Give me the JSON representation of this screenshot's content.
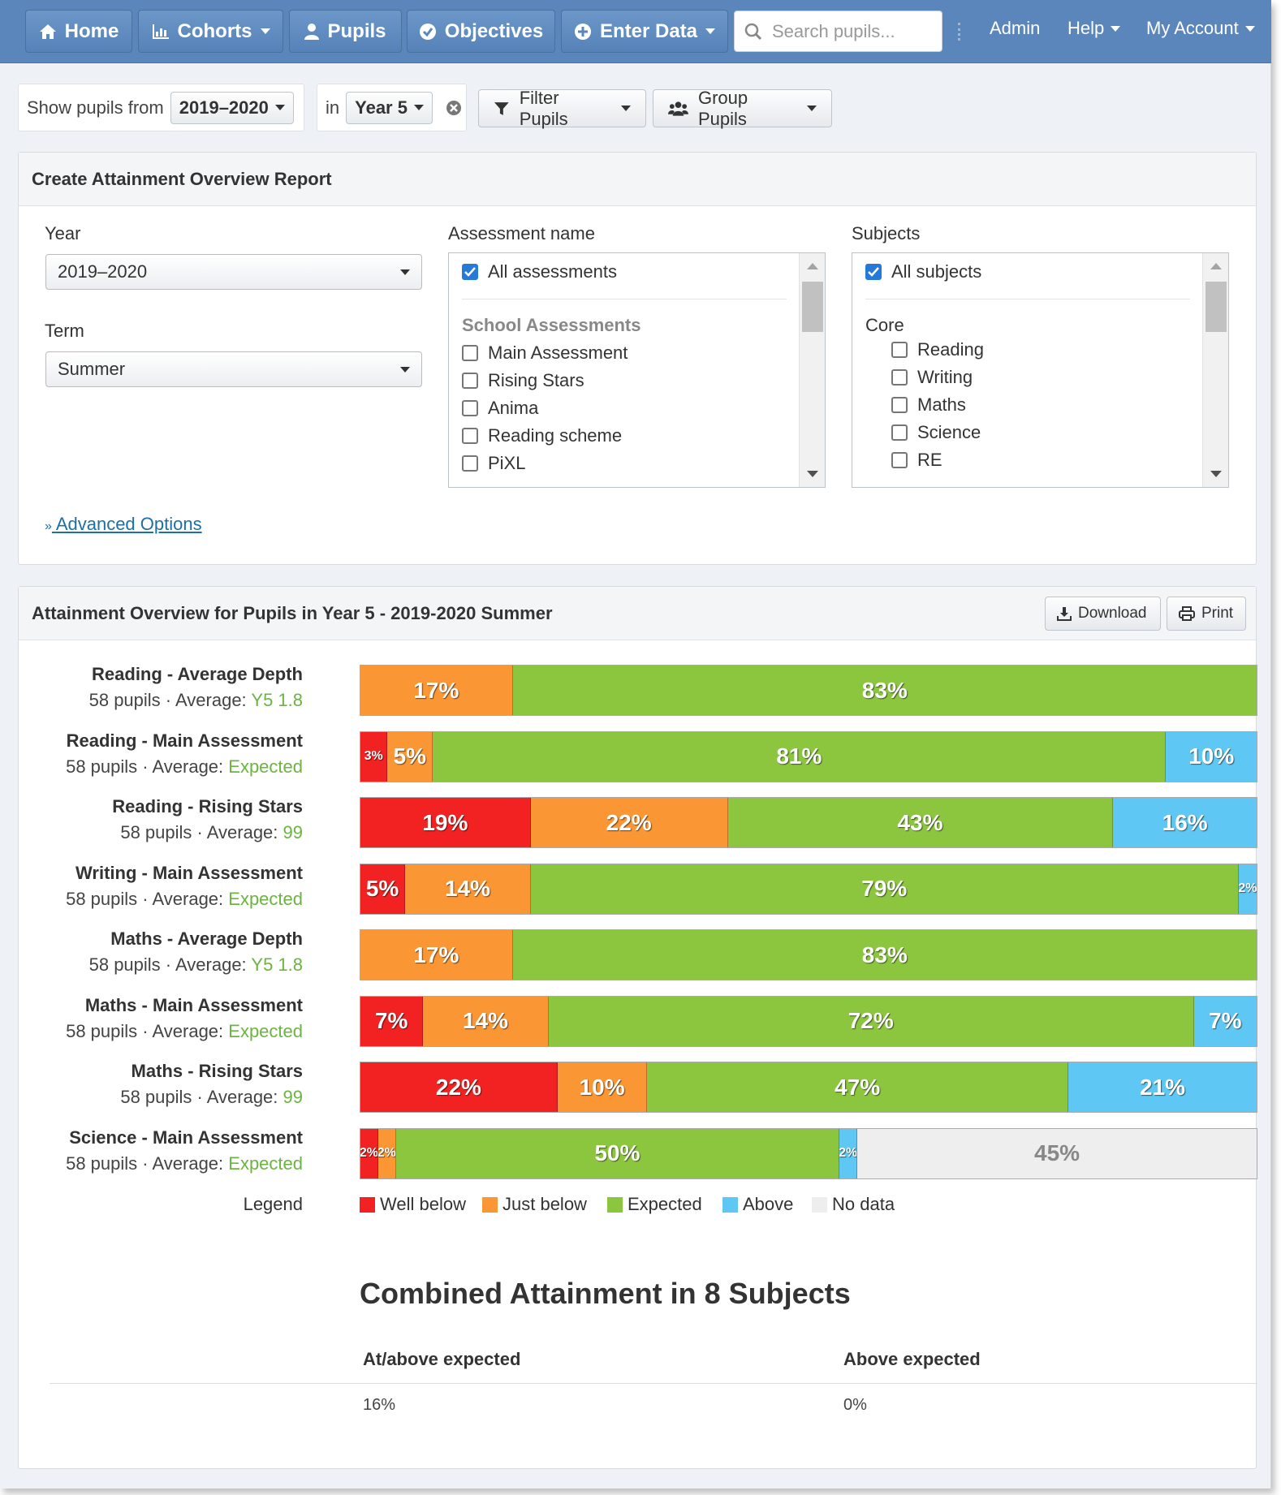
{
  "navbar": {
    "home": "Home",
    "cohorts": "Cohorts",
    "pupils": "Pupils",
    "objectives": "Objectives",
    "enter_data": "Enter Data",
    "search_placeholder": "Search pupils...",
    "admin": "Admin",
    "help": "Help",
    "my_account": "My Account"
  },
  "filter_bar": {
    "show_from_label": "Show pupils from",
    "year_value": "2019–2020",
    "in_label": "in",
    "group_value": "Year 5",
    "filter_pupils": "Filter Pupils",
    "group_pupils": "Group Pupils"
  },
  "report_form": {
    "title": "Create Attainment Overview Report",
    "year_label": "Year",
    "year_value": "2019–2020",
    "term_label": "Term",
    "term_value": "Summer",
    "assessment_label": "Assessment name",
    "assessments_all": "All assessments",
    "assessment_group": "School Assessments",
    "assessments": [
      "Main Assessment",
      "Rising Stars",
      "Anima",
      "Reading scheme",
      "PiXL"
    ],
    "subjects_label": "Subjects",
    "subjects_all": "All subjects",
    "subject_group": "Core",
    "subjects": [
      "Reading",
      "Writing",
      "Maths",
      "Science",
      "RE"
    ],
    "advanced_options": "Advanced Options"
  },
  "overview": {
    "title": "Attainment Overview for Pupils in Year 5 - 2019-2020 Summer",
    "download": "Download",
    "print": "Print",
    "pupils_text": "58 pupils · Average:",
    "legend_label": "Legend"
  },
  "chart_data": {
    "type": "bar",
    "orientation": "horizontal-stacked-100",
    "categories": [
      "Well below",
      "Just below",
      "Expected",
      "Above",
      "No data"
    ],
    "colors": {
      "Well below": "#f22222",
      "Just below": "#fb9634",
      "Expected": "#8cc63f",
      "Above": "#5fc7f3",
      "No data": "#eeeeee"
    },
    "rows": [
      {
        "label": "Reading - Average Depth",
        "pupils": 58,
        "average": "Y5 1.8",
        "segments": [
          {
            "cat": "Just below",
            "pct": 17
          },
          {
            "cat": "Expected",
            "pct": 83
          }
        ]
      },
      {
        "label": "Reading - Main Assessment",
        "pupils": 58,
        "average": "Expected",
        "segments": [
          {
            "cat": "Well below",
            "pct": 3
          },
          {
            "cat": "Just below",
            "pct": 5
          },
          {
            "cat": "Expected",
            "pct": 81
          },
          {
            "cat": "Above",
            "pct": 10
          }
        ]
      },
      {
        "label": "Reading - Rising Stars",
        "pupils": 58,
        "average": "99",
        "segments": [
          {
            "cat": "Well below",
            "pct": 19
          },
          {
            "cat": "Just below",
            "pct": 22
          },
          {
            "cat": "Expected",
            "pct": 43
          },
          {
            "cat": "Above",
            "pct": 16
          }
        ]
      },
      {
        "label": "Writing - Main Assessment",
        "pupils": 58,
        "average": "Expected",
        "segments": [
          {
            "cat": "Well below",
            "pct": 5
          },
          {
            "cat": "Just below",
            "pct": 14
          },
          {
            "cat": "Expected",
            "pct": 79
          },
          {
            "cat": "Above",
            "pct": 2
          }
        ]
      },
      {
        "label": "Maths - Average Depth",
        "pupils": 58,
        "average": "Y5 1.8",
        "segments": [
          {
            "cat": "Just below",
            "pct": 17
          },
          {
            "cat": "Expected",
            "pct": 83
          }
        ]
      },
      {
        "label": "Maths - Main Assessment",
        "pupils": 58,
        "average": "Expected",
        "segments": [
          {
            "cat": "Well below",
            "pct": 7
          },
          {
            "cat": "Just below",
            "pct": 14
          },
          {
            "cat": "Expected",
            "pct": 72
          },
          {
            "cat": "Above",
            "pct": 7
          }
        ]
      },
      {
        "label": "Maths - Rising Stars",
        "pupils": 58,
        "average": "99",
        "segments": [
          {
            "cat": "Well below",
            "pct": 22
          },
          {
            "cat": "Just below",
            "pct": 10
          },
          {
            "cat": "Expected",
            "pct": 47
          },
          {
            "cat": "Above",
            "pct": 21
          }
        ]
      },
      {
        "label": "Science - Main Assessment",
        "pupils": 58,
        "average": "Expected",
        "segments": [
          {
            "cat": "Well below",
            "pct": 2
          },
          {
            "cat": "Just below",
            "pct": 2
          },
          {
            "cat": "Expected",
            "pct": 50
          },
          {
            "cat": "Above",
            "pct": 2
          },
          {
            "cat": "No data",
            "pct": 45
          }
        ]
      }
    ]
  },
  "combined": {
    "title": "Combined Attainment in 8 Subjects",
    "col1_header": "At/above expected",
    "col2_header": "Above expected",
    "col1_value": "16%",
    "col2_value": "0%"
  }
}
